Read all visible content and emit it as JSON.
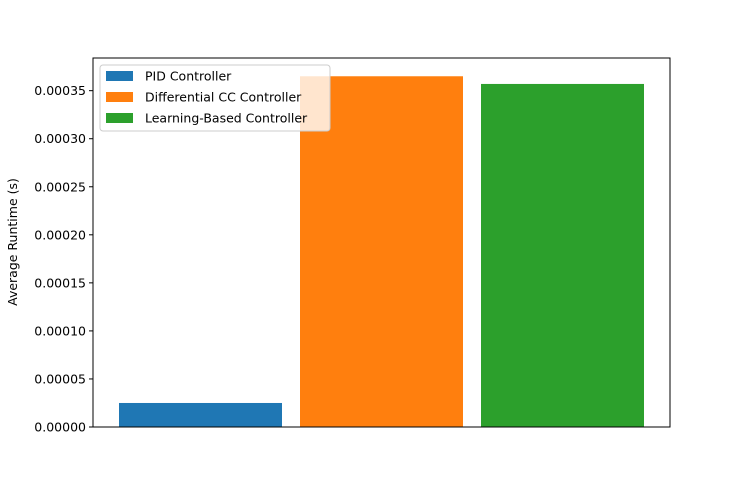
{
  "chart_data": {
    "type": "bar",
    "categories": [
      "PID Controller",
      "Differential CC Controller",
      "Learning-Based Controller"
    ],
    "values": [
      2.5e-05,
      0.000365,
      0.000357
    ],
    "colors": [
      "#1f77b4",
      "#ff7f0e",
      "#2ca02c"
    ],
    "title": "",
    "xlabel": "",
    "ylabel": "Average Runtime (s)",
    "ylim": [
      0,
      0.000384
    ],
    "yticks": [
      0,
      5e-05,
      0.0001,
      0.00015,
      0.0002,
      0.00025,
      0.0003,
      0.00035
    ],
    "ytick_labels": [
      "0.00000",
      "0.00005",
      "0.00010",
      "0.00015",
      "0.00020",
      "0.00025",
      "0.00030",
      "0.00035"
    ],
    "grid": false,
    "legend": {
      "position": "top-left",
      "entries": [
        "PID Controller",
        "Differential CC Controller",
        "Learning-Based Controller"
      ]
    }
  }
}
